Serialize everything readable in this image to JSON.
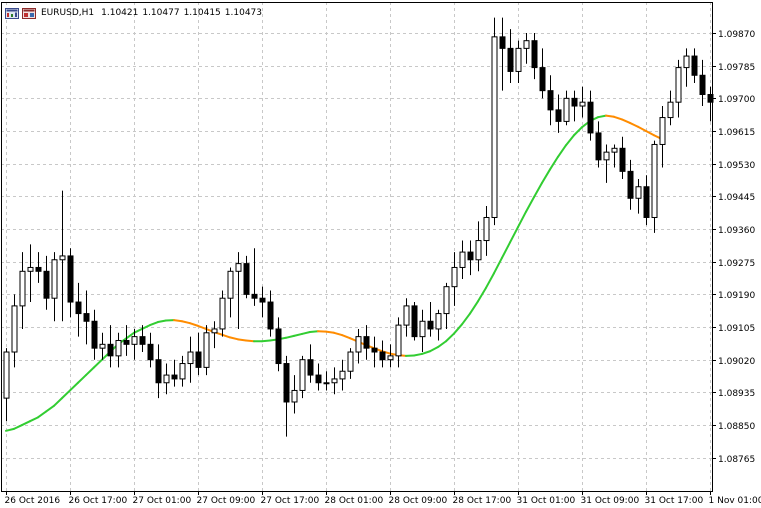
{
  "window": {
    "symbol": "EURUSD,H1",
    "open": "1.10421",
    "high": "1.10477",
    "low": "1.10415",
    "close": "1.10473",
    "icon_left": "chart-window-icon",
    "icon_right": "chart-properties-icon"
  },
  "colors": {
    "background": "#ffffff",
    "grid": "#c8c8c8",
    "frame": "#000000",
    "bull_body": "#ffffff",
    "bear_body": "#000000",
    "candle_outline": "#000000",
    "indicator_rising": "#32cd32",
    "indicator_falling": "#ff8c00"
  },
  "chart_data": {
    "type": "candlestick",
    "price_levels": [
      "1.09870",
      "1.09785",
      "1.09700",
      "1.09615",
      "1.09530",
      "1.09445",
      "1.09360",
      "1.09275",
      "1.09190",
      "1.09105",
      "1.09020",
      "1.08935",
      "1.08850",
      "1.08765"
    ],
    "time_labels": [
      "26 Oct 2016",
      "26 Oct 17:00",
      "27 Oct 01:00",
      "27 Oct 09:00",
      "27 Oct 17:00",
      "28 Oct 01:00",
      "28 Oct 09:00",
      "28 Oct 17:00",
      "31 Oct 01:00",
      "31 Oct 09:00",
      "31 Oct 17:00",
      "1 Nov 01:00"
    ],
    "ylim": [
      1.0872,
      1.0992
    ],
    "grid": true,
    "candles": [
      [
        1.0892,
        1.0905,
        1.0886,
        1.0904
      ],
      [
        1.0904,
        1.0919,
        1.09,
        1.0916
      ],
      [
        1.0916,
        1.093,
        1.091,
        1.0925
      ],
      [
        1.0925,
        1.0932,
        1.0917,
        1.0926
      ],
      [
        1.0926,
        1.093,
        1.0922,
        1.0925
      ],
      [
        1.0925,
        1.0929,
        1.0915,
        1.0918
      ],
      [
        1.0918,
        1.093,
        1.0912,
        1.0928
      ],
      [
        1.0928,
        1.0946,
        1.0912,
        1.0929
      ],
      [
        1.0929,
        1.0931,
        1.0913,
        1.0917
      ],
      [
        1.0917,
        1.0922,
        1.0908,
        1.0914
      ],
      [
        1.0914,
        1.092,
        1.0906,
        1.0912
      ],
      [
        1.0912,
        1.0915,
        1.0902,
        1.0905
      ],
      [
        1.0905,
        1.0909,
        1.0902,
        1.0906
      ],
      [
        1.0906,
        1.0911,
        1.09,
        1.0903
      ],
      [
        1.0903,
        1.0909,
        1.09,
        1.0907
      ],
      [
        1.0907,
        1.0911,
        1.0903,
        1.0906
      ],
      [
        1.0906,
        1.091,
        1.0902,
        1.0908
      ],
      [
        1.0908,
        1.0911,
        1.0904,
        1.0906
      ],
      [
        1.0906,
        1.0909,
        1.09,
        1.0902
      ],
      [
        1.0902,
        1.0906,
        1.0892,
        1.0896
      ],
      [
        1.0896,
        1.0901,
        1.0893,
        1.0898
      ],
      [
        1.0898,
        1.0902,
        1.0895,
        1.0897
      ],
      [
        1.0897,
        1.0903,
        1.0895,
        1.0901
      ],
      [
        1.0901,
        1.0908,
        1.0896,
        1.0904
      ],
      [
        1.0904,
        1.0909,
        1.0898,
        1.09
      ],
      [
        1.09,
        1.0911,
        1.0898,
        1.0909
      ],
      [
        1.0909,
        1.0912,
        1.0905,
        1.091
      ],
      [
        1.091,
        1.092,
        1.0908,
        1.0918
      ],
      [
        1.0918,
        1.0926,
        1.0913,
        1.0925
      ],
      [
        1.0925,
        1.093,
        1.091,
        1.0927
      ],
      [
        1.0927,
        1.0929,
        1.0918,
        1.0919
      ],
      [
        1.0919,
        1.0931,
        1.0916,
        1.0918
      ],
      [
        1.0918,
        1.0921,
        1.0913,
        1.0917
      ],
      [
        1.0917,
        1.092,
        1.0908,
        1.091
      ],
      [
        1.091,
        1.0913,
        1.0899,
        1.0901
      ],
      [
        1.0901,
        1.0903,
        1.0882,
        1.0891
      ],
      [
        1.0891,
        1.0898,
        1.0888,
        1.0894
      ],
      [
        1.0894,
        1.0903,
        1.0892,
        1.0902
      ],
      [
        1.0902,
        1.0906,
        1.0896,
        1.0898
      ],
      [
        1.0898,
        1.0901,
        1.0894,
        1.0896
      ],
      [
        1.0896,
        1.0899,
        1.0894,
        1.0896
      ],
      [
        1.0896,
        1.09,
        1.0893,
        1.0897
      ],
      [
        1.0897,
        1.0902,
        1.0894,
        1.0899
      ],
      [
        1.0899,
        1.0905,
        1.0897,
        1.0904
      ],
      [
        1.0904,
        1.091,
        1.0901,
        1.0908
      ],
      [
        1.0908,
        1.0911,
        1.0902,
        1.0905
      ],
      [
        1.0905,
        1.0908,
        1.09,
        1.0904
      ],
      [
        1.0904,
        1.0907,
        1.09,
        1.0902
      ],
      [
        1.0902,
        1.0906,
        1.09,
        1.0903
      ],
      [
        1.0903,
        1.0913,
        1.09,
        1.0911
      ],
      [
        1.0911,
        1.0918,
        1.0908,
        1.0916
      ],
      [
        1.0916,
        1.0917,
        1.0907,
        1.0908
      ],
      [
        1.0908,
        1.0915,
        1.0904,
        1.0912
      ],
      [
        1.0912,
        1.0917,
        1.0908,
        1.091
      ],
      [
        1.091,
        1.0915,
        1.0907,
        1.0914
      ],
      [
        1.0914,
        1.0922,
        1.091,
        1.0921
      ],
      [
        1.0921,
        1.093,
        1.0916,
        1.0926
      ],
      [
        1.0926,
        1.0933,
        1.0923,
        1.093
      ],
      [
        1.093,
        1.0933,
        1.0924,
        1.0928
      ],
      [
        1.0928,
        1.0938,
        1.0925,
        1.0933
      ],
      [
        1.0933,
        1.0942,
        1.0929,
        1.0939
      ],
      [
        1.0939,
        1.0991,
        1.0937,
        1.0986
      ],
      [
        1.0986,
        1.0991,
        1.0972,
        1.0983
      ],
      [
        1.0983,
        1.0988,
        1.0974,
        1.0977
      ],
      [
        1.0977,
        1.0985,
        1.0974,
        1.0983
      ],
      [
        1.0983,
        1.0987,
        1.0979,
        1.0985
      ],
      [
        1.0985,
        1.0987,
        1.0975,
        1.0978
      ],
      [
        1.0978,
        1.0983,
        1.097,
        1.0972
      ],
      [
        1.0972,
        1.0976,
        1.0963,
        1.0967
      ],
      [
        1.0967,
        1.0971,
        1.0961,
        1.0964
      ],
      [
        1.0964,
        1.0972,
        1.0963,
        1.097
      ],
      [
        1.097,
        1.0972,
        1.0964,
        1.0968
      ],
      [
        1.0968,
        1.0973,
        1.0965,
        1.0969
      ],
      [
        1.0969,
        1.0972,
        1.0959,
        1.0961
      ],
      [
        1.0961,
        1.0964,
        1.0952,
        1.0954
      ],
      [
        1.0954,
        1.0958,
        1.0948,
        1.0956
      ],
      [
        1.0956,
        1.0958,
        1.0952,
        1.0957
      ],
      [
        1.0957,
        1.096,
        1.0949,
        1.0951
      ],
      [
        1.0951,
        1.0954,
        1.0941,
        1.0944
      ],
      [
        1.0944,
        1.0949,
        1.094,
        1.0947
      ],
      [
        1.0947,
        1.095,
        1.0937,
        1.0939
      ],
      [
        1.0939,
        1.0959,
        1.0935,
        1.0958
      ],
      [
        1.0958,
        1.0968,
        1.0952,
        1.0965
      ],
      [
        1.0965,
        1.0972,
        1.0963,
        1.0969
      ],
      [
        1.0969,
        1.098,
        1.0965,
        1.0978
      ],
      [
        1.0978,
        1.0983,
        1.0973,
        1.0981
      ],
      [
        1.0981,
        1.0983,
        1.0974,
        1.0976
      ],
      [
        1.0976,
        1.098,
        1.0968,
        1.0971
      ],
      [
        1.0971,
        1.0973,
        1.0964,
        1.0969
      ]
    ],
    "indicator": [
      1.08835,
      1.0884,
      1.0885,
      1.0886,
      1.0887,
      1.08885,
      1.089,
      1.0892,
      1.0894,
      1.0896,
      1.0898,
      1.09,
      1.0902,
      1.0904,
      1.0906,
      1.09075,
      1.0909,
      1.091,
      1.0911,
      1.09118,
      1.09122,
      1.09123,
      1.0912,
      1.09115,
      1.09108,
      1.091,
      1.09092,
      1.09085,
      1.09078,
      1.09073,
      1.0907,
      1.09068,
      1.09068,
      1.0907,
      1.09073,
      1.09077,
      1.09082,
      1.09087,
      1.09092,
      1.09094,
      1.09093,
      1.0909,
      1.09084,
      1.09076,
      1.09067,
      1.09058,
      1.0905,
      1.09042,
      1.09036,
      1.09032,
      1.0903,
      1.09031,
      1.09035,
      1.09042,
      1.09053,
      1.09068,
      1.09088,
      1.09112,
      1.0914,
      1.09172,
      1.09207,
      1.09245,
      1.09285,
      1.09325,
      1.09365,
      1.09405,
      1.09443,
      1.0948,
      1.09515,
      1.09548,
      1.09578,
      1.09604,
      1.09625,
      1.09641,
      1.09651,
      1.09655,
      1.09652,
      1.09645,
      1.09636,
      1.09626,
      1.09615,
      1.09604,
      1.09594
    ]
  }
}
